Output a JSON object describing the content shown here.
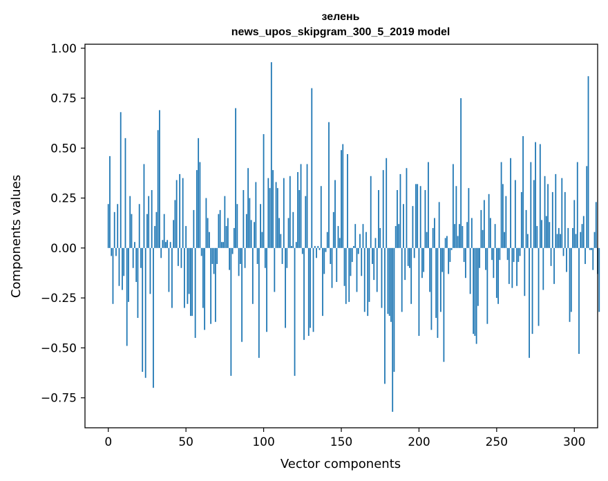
{
  "chart_data": {
    "type": "bar",
    "title": "зелень",
    "subtitle": "news_upos_skipgram_300_5_2019 model",
    "xlabel": "Vector components",
    "ylabel": "Components values",
    "xlim": [
      -15,
      315
    ],
    "ylim": [
      -0.9,
      1.02
    ],
    "x_ticks": [
      0,
      50,
      100,
      150,
      200,
      250,
      300
    ],
    "x_tick_labels": [
      "0",
      "50",
      "100",
      "150",
      "200",
      "250",
      "300"
    ],
    "y_ticks": [
      -0.75,
      -0.5,
      -0.25,
      0,
      0.25,
      0.5,
      0.75,
      1.0
    ],
    "y_tick_labels": [
      "−0.75",
      "−0.50",
      "−0.25",
      "0.00",
      "0.25",
      "0.50",
      "0.75",
      "1.00"
    ],
    "grid": false,
    "bar_color": "#1f77b4",
    "values": [
      0.22,
      0.46,
      -0.04,
      -0.28,
      0.18,
      -0.04,
      0.22,
      -0.19,
      0.68,
      -0.21,
      -0.14,
      0.55,
      -0.49,
      -0.27,
      0.26,
      0.17,
      -0.1,
      0.03,
      -0.17,
      -0.35,
      0.22,
      -0.1,
      -0.62,
      0.42,
      -0.65,
      0.17,
      0.26,
      -0.23,
      0.29,
      -0.7,
      0.11,
      0.18,
      0.59,
      0.69,
      -0.05,
      0.04,
      0.17,
      0.03,
      0.04,
      -0.22,
      0.03,
      -0.3,
      0.14,
      0.24,
      0.34,
      -0.09,
      0.37,
      -0.1,
      0.35,
      -0.3,
      0.11,
      -0.28,
      -0.23,
      -0.34,
      -0.34,
      0.19,
      -0.45,
      0.39,
      0.55,
      0.43,
      -0.04,
      -0.3,
      -0.41,
      0.25,
      0.15,
      0.08,
      -0.38,
      -0.08,
      -0.13,
      -0.37,
      -0.08,
      0.17,
      0.19,
      0.03,
      0.03,
      0.26,
      0.11,
      0.15,
      -0.11,
      -0.64,
      -0.03,
      0.1,
      0.7,
      0.22,
      -0.14,
      -0.08,
      -0.47,
      0.29,
      -0.1,
      0.17,
      0.4,
      0.25,
      0.14,
      -0.28,
      0.13,
      0.33,
      -0.08,
      -0.55,
      0.22,
      0.08,
      0.57,
      -0.1,
      -0.42,
      0.35,
      0.3,
      0.93,
      0.39,
      -0.22,
      0.33,
      0.3,
      0.15,
      0.07,
      -0.08,
      0.35,
      -0.4,
      -0.1,
      0.15,
      0.36,
      0.01,
      0.18,
      -0.64,
      0.03,
      0.38,
      0.29,
      0.42,
      -0.03,
      -0.46,
      0.26,
      0.42,
      -0.44,
      -0.4,
      0.8,
      -0.42,
      0.01,
      -0.05,
      0.01,
      -0.01,
      0.31,
      -0.34,
      -0.13,
      -0.02,
      0.08,
      0.63,
      -0.08,
      -0.2,
      0.18,
      0.34,
      -0.17,
      0.11,
      0.05,
      0.49,
      0.52,
      -0.19,
      -0.28,
      0.47,
      -0.27,
      -0.14,
      -0.07,
      0.01,
      0.12,
      -0.22,
      -0.03,
      0.07,
      -0.14,
      0.12,
      -0.32,
      0.08,
      -0.34,
      -0.27,
      0.36,
      -0.08,
      -0.16,
      0.05,
      -0.22,
      0.29,
      0.1,
      -0.3,
      0.39,
      -0.68,
      0.45,
      -0.33,
      -0.34,
      -0.37,
      -0.82,
      -0.62,
      0.11,
      0.29,
      0.12,
      0.37,
      -0.32,
      0.22,
      -0.16,
      0.4,
      -0.09,
      -0.1,
      -0.28,
      0.21,
      -0.05,
      0.32,
      0.32,
      -0.44,
      0.31,
      -0.15,
      -0.12,
      0.29,
      0.08,
      0.43,
      -0.22,
      -0.41,
      0.1,
      0.15,
      -0.35,
      -0.45,
      0.23,
      -0.32,
      -0.12,
      -0.57,
      0.05,
      0.06,
      -0.13,
      -0.07,
      -0.01,
      0.42,
      0.12,
      0.31,
      0.06,
      0.12,
      0.75,
      0.11,
      -0.07,
      -0.15,
      0.13,
      0.3,
      -0.23,
      0.15,
      -0.43,
      -0.44,
      -0.48,
      -0.29,
      -0.1,
      0.19,
      0.09,
      0.24,
      -0.11,
      -0.38,
      0.27,
      0.15,
      -0.06,
      -0.15,
      0.12,
      -0.25,
      -0.28,
      -0.06,
      0.43,
      0.32,
      0.08,
      0.26,
      -0.06,
      -0.18,
      0.45,
      -0.2,
      -0.07,
      0.34,
      -0.19,
      -0.07,
      -0.04,
      0.28,
      0.56,
      -0.24,
      0.19,
      0.07,
      -0.55,
      0.43,
      -0.43,
      0.34,
      0.53,
      0.11,
      -0.39,
      0.52,
      0.14,
      -0.21,
      0.36,
      0.16,
      0.32,
      0.13,
      -0.09,
      0.28,
      -0.18,
      0.37,
      0.07,
      0.1,
      0.07,
      0.35,
      -0.04,
      0.28,
      -0.12,
      0.1,
      -0.37,
      -0.32,
      0.1,
      0.24,
      0.07,
      0.43,
      -0.53,
      0.08,
      0.12,
      0.16,
      -0.08,
      0.41,
      0.86,
      -0.01,
      -0.01,
      -0.11,
      0.08,
      0.23,
      -0.13,
      -0.32
    ]
  }
}
